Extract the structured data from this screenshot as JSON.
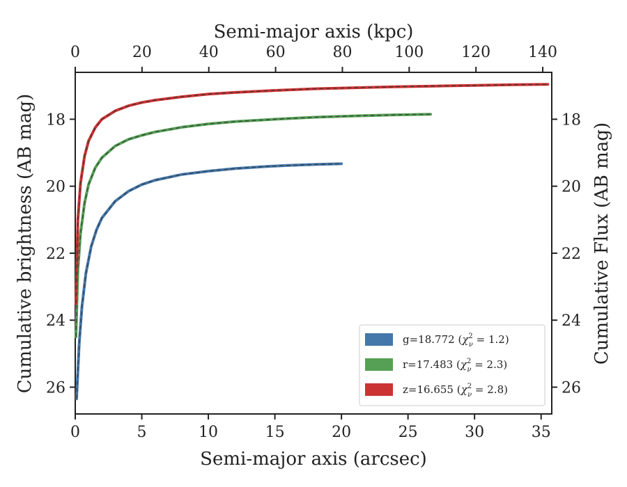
{
  "chart_data": {
    "type": "line",
    "xlabel": "Semi-major axis (arcsec)",
    "xlabel_top": "Semi-major axis (kpc)",
    "ylabel": "Cumulative brightness (AB mag)",
    "ylabel_right": "Cumulative Flux (AB mag)",
    "xlim": [
      0,
      35.8
    ],
    "xlim_top": [
      0,
      142.7
    ],
    "ylim": [
      26.8,
      16.6
    ],
    "y_inverted": true,
    "xticks": [
      "0",
      "5",
      "10",
      "15",
      "20",
      "25",
      "30",
      "35"
    ],
    "xticks_top": [
      "0",
      "20",
      "40",
      "60",
      "80",
      "100",
      "120",
      "140"
    ],
    "yticks": [
      "18",
      "20",
      "22",
      "24",
      "26"
    ],
    "yticks_right": [
      "18",
      "20",
      "22",
      "24",
      "26"
    ],
    "legend_position": "lower-right",
    "series": [
      {
        "name": "g=18.772",
        "chi_label": "1.2",
        "color": "#4477aa",
        "x": [
          0.1,
          0.3,
          0.5,
          0.8,
          1.2,
          1.6,
          2.0,
          3.0,
          4.0,
          5.0,
          6.0,
          8.0,
          10.0,
          12.0,
          14.0,
          16.0,
          18.0,
          20.0
        ],
        "y": [
          26.35,
          24.7,
          23.6,
          22.6,
          21.8,
          21.3,
          20.95,
          20.45,
          20.15,
          19.95,
          19.82,
          19.65,
          19.55,
          19.47,
          19.42,
          19.38,
          19.35,
          19.33
        ]
      },
      {
        "name": "r=17.483",
        "chi_label": "2.3",
        "color": "#55a055",
        "x": [
          0.05,
          0.2,
          0.4,
          0.7,
          1.0,
          1.5,
          2.0,
          3.0,
          4.0,
          5.0,
          6.0,
          8.0,
          10.0,
          12.0,
          15.0,
          18.0,
          21.0,
          24.0,
          26.7
        ],
        "y": [
          24.5,
          22.5,
          21.4,
          20.5,
          19.95,
          19.45,
          19.15,
          18.8,
          18.6,
          18.48,
          18.38,
          18.24,
          18.14,
          18.07,
          18.0,
          17.94,
          17.9,
          17.87,
          17.85
        ]
      },
      {
        "name": "z=16.655",
        "chi_label": "2.8",
        "color": "#cc3333",
        "x": [
          0.05,
          0.2,
          0.4,
          0.7,
          1.0,
          1.5,
          2.0,
          3.0,
          4.0,
          5.0,
          6.0,
          8.0,
          10.0,
          12.0,
          15.0,
          18.0,
          21.0,
          24.0,
          27.0,
          30.0,
          33.0,
          35.5
        ],
        "y": [
          23.5,
          21.0,
          19.9,
          19.1,
          18.65,
          18.25,
          18.0,
          17.75,
          17.6,
          17.5,
          17.43,
          17.33,
          17.25,
          17.2,
          17.14,
          17.09,
          17.06,
          17.03,
          17.01,
          16.99,
          16.97,
          16.96
        ]
      }
    ]
  }
}
